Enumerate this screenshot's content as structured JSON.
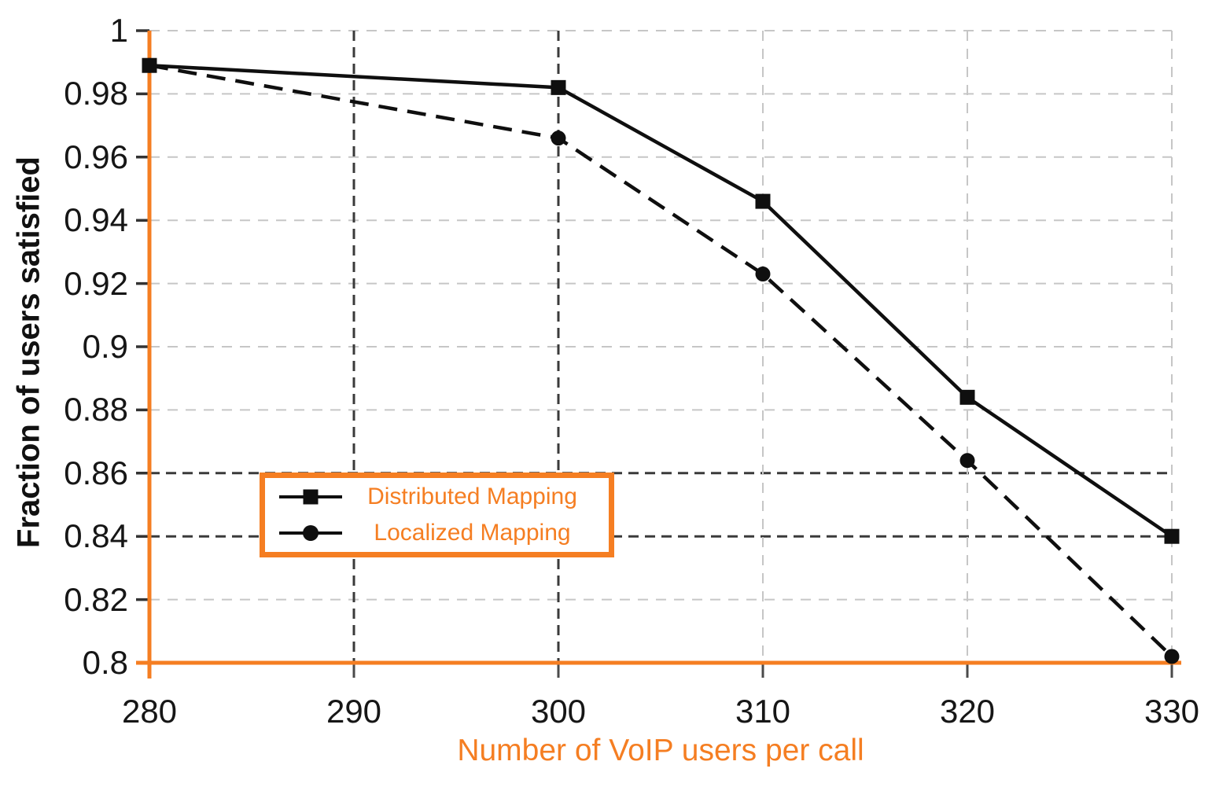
{
  "chart_data": {
    "type": "line",
    "title": "",
    "xlabel": "Number of VoIP users per call",
    "ylabel": "Fraction of users satisfied",
    "x": [
      280,
      300,
      310,
      320,
      330
    ],
    "series": [
      {
        "name": "Distributed Mapping",
        "marker": "square",
        "line_style": "solid",
        "values": [
          0.989,
          0.982,
          0.946,
          0.884,
          0.84
        ]
      },
      {
        "name": "Localized Mapping",
        "marker": "circle",
        "line_style": "dashed",
        "values": [
          0.989,
          0.966,
          0.923,
          0.864,
          0.802
        ]
      }
    ],
    "xlim": [
      280,
      330
    ],
    "ylim": [
      0.8,
      1.0
    ],
    "x_ticks": [
      280,
      290,
      300,
      310,
      320,
      330
    ],
    "y_ticks": [
      0.8,
      0.82,
      0.84,
      0.86,
      0.88,
      0.9,
      0.92,
      0.94,
      0.96,
      0.98,
      1
    ],
    "y_tick_labels": [
      "0.8",
      "0.82",
      "0.84",
      "0.86",
      "0.88",
      "0.9",
      "0.92",
      "0.94",
      "0.96",
      "0.98",
      "1"
    ],
    "grid": true,
    "legend_position": "inside-lower-left",
    "emphasized_gridlines": {
      "x": [
        290,
        300
      ],
      "y": [
        0.84,
        0.86
      ]
    },
    "colors": {
      "axis_accent": "#F57E22",
      "series_line": "#0f0f0f",
      "grid_light": "#c6c6c6",
      "grid_dark": "#3a3a3a",
      "tick_label_text": "#161616"
    }
  }
}
